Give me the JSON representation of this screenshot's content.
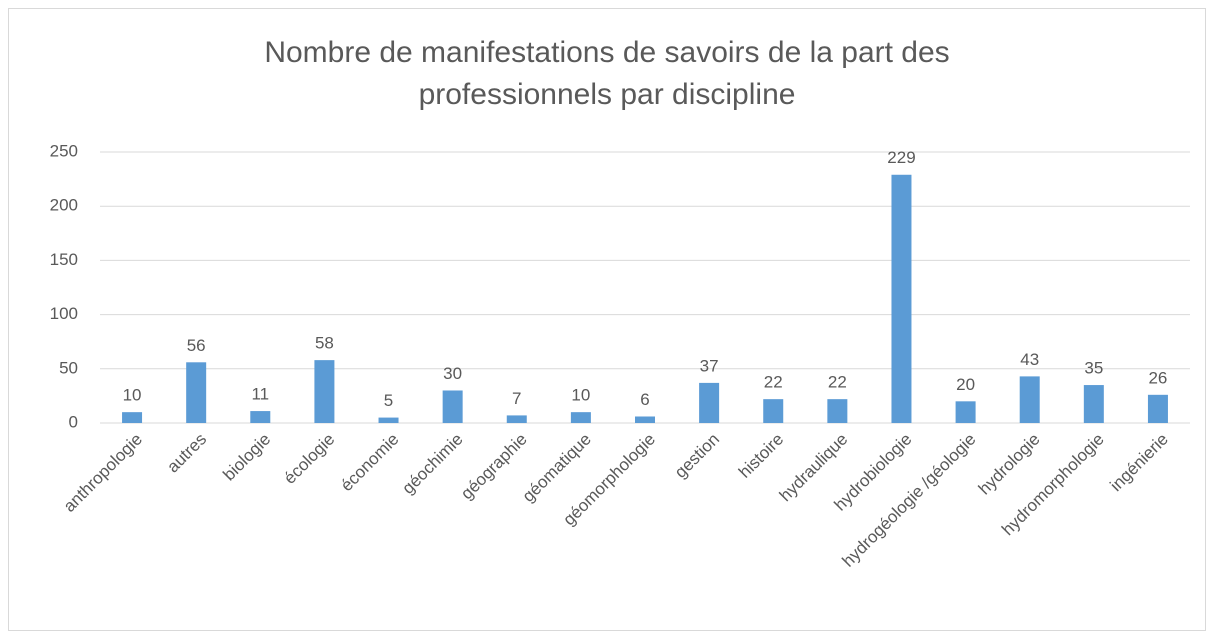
{
  "chart_data": {
    "type": "bar",
    "title": "Nombre de manifestations de savoirs de la part des professionnels par discipline",
    "categories": [
      "anthropologie",
      "autres",
      "biologie",
      "écologie",
      "économie",
      "géochimie",
      "géographie",
      "géomatique",
      "géomorphologie",
      "gestion",
      "histoire",
      "hydraulique",
      "hydrobiologie",
      "hydrogéologie /géologie",
      "hydrologie",
      "hydromorphologie",
      "ingénierie"
    ],
    "values": [
      10,
      56,
      11,
      58,
      5,
      30,
      7,
      10,
      6,
      37,
      22,
      22,
      229,
      20,
      43,
      35,
      26
    ],
    "color": "#5b9bd5",
    "ylim": [
      0,
      250
    ],
    "yticks": [
      0,
      50,
      100,
      150,
      200,
      250
    ],
    "grid": true
  }
}
